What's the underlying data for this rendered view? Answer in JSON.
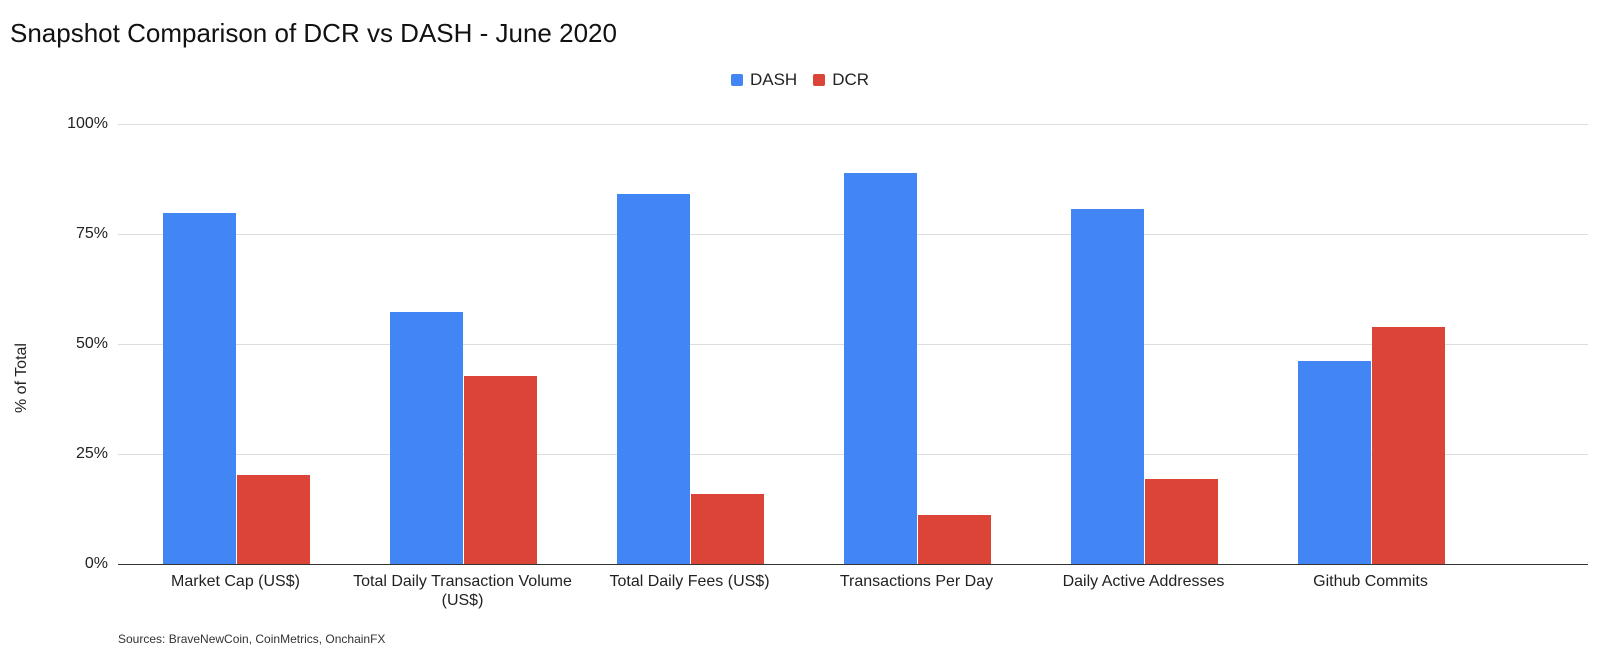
{
  "chart_data": {
    "type": "bar",
    "title": "Snapshot Comparison of DCR vs DASH - June 2020",
    "xlabel": "",
    "ylabel": "% of Total",
    "ylim": [
      0,
      100
    ],
    "yticks": [
      "0%",
      "25%",
      "50%",
      "75%",
      "100%"
    ],
    "grid": true,
    "legend_position": "top",
    "categories": [
      "Market Cap (US$)",
      "Total Daily Transaction Volume (US$)",
      "Total Daily Fees (US$)",
      "Transactions Per Day",
      "Daily Active Addresses",
      "Github Commits"
    ],
    "series": [
      {
        "name": "DASH",
        "color": "#4285f4",
        "values": [
          79.8,
          57.3,
          84.1,
          88.9,
          80.7,
          46.1
        ]
      },
      {
        "name": "DCR",
        "color": "#db4437",
        "values": [
          20.2,
          42.7,
          15.9,
          11.1,
          19.3,
          53.9
        ]
      }
    ],
    "source_note": "Sources: BraveNewCoin, CoinMetrics, OnchainFX"
  }
}
